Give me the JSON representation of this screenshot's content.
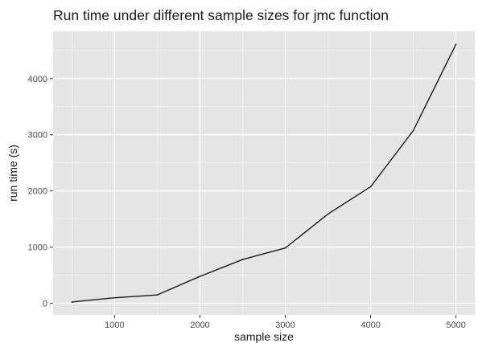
{
  "chart_data": {
    "type": "line",
    "title": "Run time under different sample sizes for jmc function",
    "xlabel": "sample size",
    "ylabel": "run time (s)",
    "x": [
      500,
      1000,
      1500,
      2000,
      2500,
      3000,
      3500,
      4000,
      4500,
      5000
    ],
    "series": [
      {
        "values": [
          25,
          100,
          150,
          480,
          780,
          985,
          1590,
          2075,
          3075,
          4610
        ]
      }
    ],
    "xticks": [
      1000,
      2000,
      3000,
      4000,
      5000
    ],
    "yticks": [
      0,
      1000,
      2000,
      3000,
      4000
    ],
    "xlim": [
      280,
      5220
    ],
    "ylim": [
      -205,
      4840
    ],
    "grid": true,
    "colors": {
      "panel": "#e5e5e5",
      "grid_major": "#ffffff",
      "line": "#1a1a1a",
      "tick_text": "#4d4d4d"
    }
  }
}
